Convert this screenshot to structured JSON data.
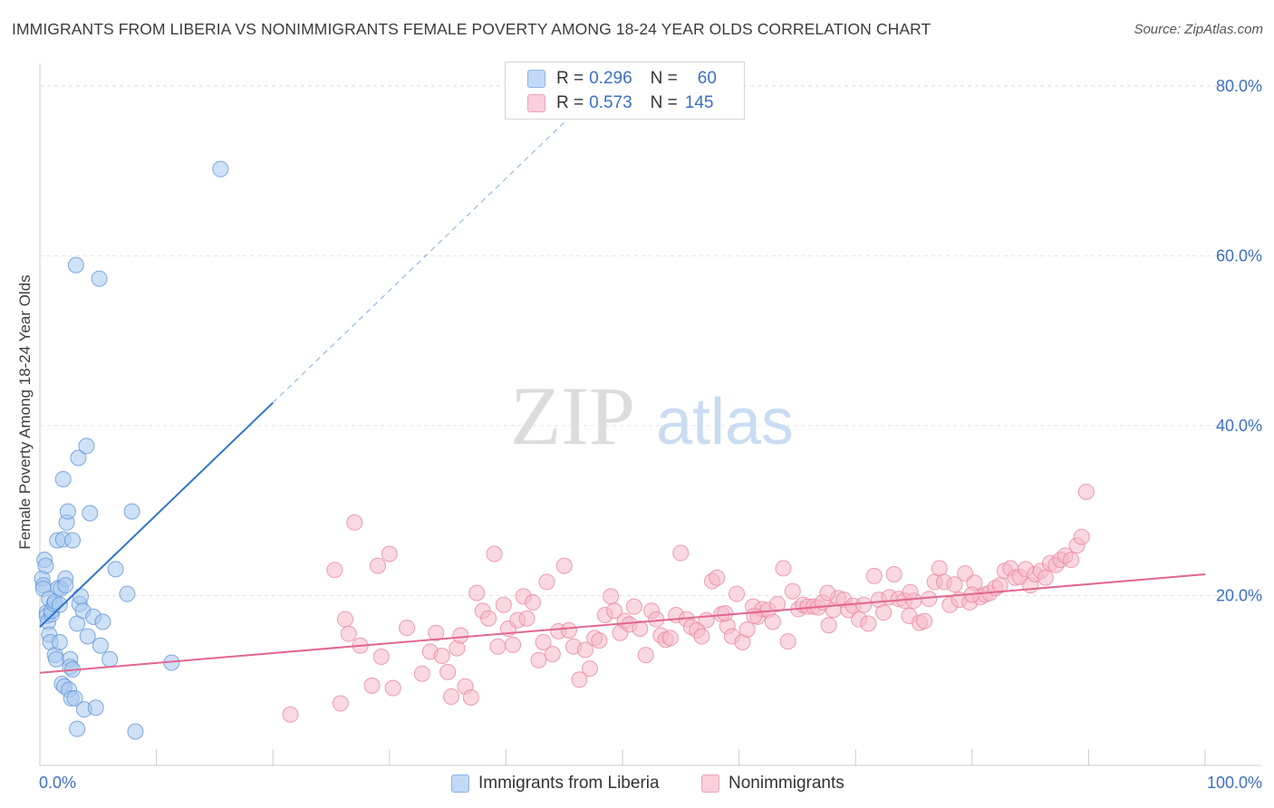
{
  "header": {
    "title": "IMMIGRANTS FROM LIBERIA VS NONIMMIGRANTS FEMALE POVERTY AMONG 18-24 YEAR OLDS CORRELATION CHART",
    "source": "Source: ZipAtlas.com"
  },
  "watermark": {
    "zip": "ZIP",
    "atlas": "atlas"
  },
  "legend": {
    "rows": [
      {
        "r_label": "R =",
        "r_value": "0.296",
        "n_label": "N =",
        "n_value": "60",
        "color": "#a8c8f0"
      },
      {
        "r_label": "R =",
        "r_value": "0.573",
        "n_label": "N =",
        "n_value": "145",
        "color": "#f5b8cb"
      }
    ],
    "bottom": [
      {
        "label": "Immigrants from Liberia",
        "color": "#a8c8f0"
      },
      {
        "label": "Nonimmigrants",
        "color": "#f5b8cb"
      }
    ]
  },
  "colors": {
    "blue_fill": "#a8c8f0",
    "blue_stroke": "#6a9ad8",
    "blue_line": "#2f74d0",
    "pink_fill": "#f5b8cb",
    "pink_stroke": "#e8879f",
    "pink_line": "#e2668f",
    "tick_text": "#3a6fc8",
    "grid": "#e2e2e2"
  },
  "chart_data": {
    "type": "scatter",
    "title": "IMMIGRANTS FROM LIBERIA VS NONIMMIGRANTS FEMALE POVERTY AMONG 18-24 YEAR OLDS CORRELATION CHART",
    "xlabel": "",
    "ylabel": "Female Poverty Among 18-24 Year Olds",
    "xlim": [
      0,
      100
    ],
    "ylim": [
      0,
      82
    ],
    "x_tick_labels": [
      "0.0%",
      "100.0%"
    ],
    "y_ticks": [
      20,
      40,
      60,
      80
    ],
    "y_tick_labels": [
      "20.0%",
      "40.0%",
      "60.0%",
      "80.0%"
    ],
    "grid": true,
    "legend_position": "top-center",
    "series": [
      {
        "name": "Immigrants from Liberia",
        "r": 0.296,
        "n": 60,
        "trend": {
          "x0": 0,
          "y0": 16.3,
          "x1": 20,
          "y1": 42.7,
          "dashed_to_x": 45
        },
        "points": [
          [
            0.2,
            22.0
          ],
          [
            0.3,
            21.2
          ],
          [
            0.3,
            20.8
          ],
          [
            0.4,
            24.2
          ],
          [
            0.5,
            23.5
          ],
          [
            0.6,
            18.0
          ],
          [
            0.6,
            17.6
          ],
          [
            0.7,
            16.9
          ],
          [
            0.8,
            19.6
          ],
          [
            0.8,
            15.4
          ],
          [
            0.9,
            14.5
          ],
          [
            1.0,
            17.8
          ],
          [
            1.0,
            18.2
          ],
          [
            1.2,
            19.0
          ],
          [
            1.3,
            19.3
          ],
          [
            1.3,
            13.0
          ],
          [
            1.4,
            12.5
          ],
          [
            1.5,
            26.5
          ],
          [
            1.6,
            20.9
          ],
          [
            1.7,
            18.9
          ],
          [
            1.7,
            14.5
          ],
          [
            1.8,
            20.8
          ],
          [
            1.9,
            9.6
          ],
          [
            2.0,
            26.6
          ],
          [
            2.0,
            33.7
          ],
          [
            2.1,
            9.3
          ],
          [
            2.2,
            22.0
          ],
          [
            2.2,
            21.2
          ],
          [
            2.3,
            28.6
          ],
          [
            2.4,
            29.9
          ],
          [
            2.5,
            8.9
          ],
          [
            2.6,
            12.5
          ],
          [
            2.6,
            11.6
          ],
          [
            2.7,
            7.9
          ],
          [
            2.8,
            11.3
          ],
          [
            2.8,
            26.5
          ],
          [
            3.0,
            7.9
          ],
          [
            3.1,
            58.9
          ],
          [
            3.2,
            16.7
          ],
          [
            3.2,
            4.3
          ],
          [
            3.3,
            36.2
          ],
          [
            3.4,
            19.0
          ],
          [
            3.5,
            19.9
          ],
          [
            3.7,
            18.2
          ],
          [
            3.8,
            6.6
          ],
          [
            4.0,
            37.6
          ],
          [
            4.1,
            15.2
          ],
          [
            4.3,
            29.7
          ],
          [
            4.6,
            17.5
          ],
          [
            4.8,
            6.8
          ],
          [
            5.1,
            57.3
          ],
          [
            5.2,
            14.1
          ],
          [
            5.4,
            16.9
          ],
          [
            6.0,
            12.5
          ],
          [
            6.5,
            23.1
          ],
          [
            7.5,
            20.2
          ],
          [
            7.9,
            29.9
          ],
          [
            8.2,
            4.0
          ],
          [
            11.3,
            12.1
          ],
          [
            15.5,
            70.2
          ]
        ]
      },
      {
        "name": "Nonimmigrants",
        "r": 0.573,
        "n": 145,
        "trend": {
          "x0": 0,
          "y0": 10.9,
          "x1": 100,
          "y1": 22.5
        },
        "points": [
          [
            21.5,
            6.0
          ],
          [
            25.3,
            23.0
          ],
          [
            25.8,
            7.3
          ],
          [
            26.2,
            17.2
          ],
          [
            26.5,
            15.5
          ],
          [
            27.0,
            28.6
          ],
          [
            27.5,
            14.1
          ],
          [
            28.5,
            9.4
          ],
          [
            29.0,
            23.5
          ],
          [
            29.3,
            12.8
          ],
          [
            30.0,
            24.9
          ],
          [
            30.3,
            9.1
          ],
          [
            31.5,
            16.2
          ],
          [
            32.8,
            10.8
          ],
          [
            33.5,
            13.4
          ],
          [
            34.0,
            15.6
          ],
          [
            34.5,
            12.9
          ],
          [
            35.0,
            11.0
          ],
          [
            35.3,
            8.1
          ],
          [
            35.8,
            13.8
          ],
          [
            36.1,
            15.3
          ],
          [
            36.5,
            9.3
          ],
          [
            37.0,
            8.0
          ],
          [
            37.5,
            20.3
          ],
          [
            38.0,
            18.2
          ],
          [
            38.5,
            17.3
          ],
          [
            39.0,
            24.9
          ],
          [
            39.3,
            14.0
          ],
          [
            39.8,
            18.9
          ],
          [
            40.2,
            16.1
          ],
          [
            40.6,
            14.2
          ],
          [
            41.0,
            17.1
          ],
          [
            41.5,
            19.9
          ],
          [
            41.8,
            17.3
          ],
          [
            42.3,
            19.2
          ],
          [
            42.8,
            12.4
          ],
          [
            43.2,
            14.5
          ],
          [
            43.5,
            21.6
          ],
          [
            44.0,
            13.1
          ],
          [
            44.5,
            15.8
          ],
          [
            45.0,
            23.5
          ],
          [
            45.4,
            15.9
          ],
          [
            45.8,
            14.0
          ],
          [
            46.3,
            10.1
          ],
          [
            46.8,
            13.6
          ],
          [
            47.2,
            11.4
          ],
          [
            47.6,
            15.0
          ],
          [
            48.0,
            14.7
          ],
          [
            48.5,
            17.7
          ],
          [
            49.0,
            19.9
          ],
          [
            49.3,
            18.2
          ],
          [
            49.8,
            15.6
          ],
          [
            50.2,
            17.0
          ],
          [
            50.6,
            16.6
          ],
          [
            51.0,
            18.7
          ],
          [
            51.5,
            16.1
          ],
          [
            52.0,
            13.0
          ],
          [
            52.5,
            18.2
          ],
          [
            52.9,
            17.2
          ],
          [
            53.3,
            15.3
          ],
          [
            53.7,
            14.8
          ],
          [
            54.1,
            15.0
          ],
          [
            54.6,
            17.7
          ],
          [
            55.0,
            25.0
          ],
          [
            55.5,
            17.2
          ],
          [
            55.9,
            16.3
          ],
          [
            56.4,
            15.9
          ],
          [
            56.8,
            15.2
          ],
          [
            57.2,
            17.1
          ],
          [
            57.7,
            21.7
          ],
          [
            58.1,
            22.1
          ],
          [
            58.5,
            17.8
          ],
          [
            59.0,
            16.4
          ],
          [
            59.4,
            15.2
          ],
          [
            59.8,
            20.2
          ],
          [
            60.3,
            14.5
          ],
          [
            60.7,
            16.0
          ],
          [
            61.2,
            18.7
          ],
          [
            61.6,
            17.5
          ],
          [
            62.0,
            18.4
          ],
          [
            62.5,
            18.3
          ],
          [
            62.9,
            16.9
          ],
          [
            63.3,
            19.0
          ],
          [
            63.8,
            23.2
          ],
          [
            64.2,
            14.6
          ],
          [
            64.6,
            20.5
          ],
          [
            65.1,
            18.4
          ],
          [
            65.5,
            18.9
          ],
          [
            65.9,
            18.7
          ],
          [
            66.4,
            18.7
          ],
          [
            66.8,
            18.6
          ],
          [
            67.2,
            19.2
          ],
          [
            67.7,
            16.5
          ],
          [
            68.1,
            18.3
          ],
          [
            68.5,
            19.7
          ],
          [
            69.0,
            19.5
          ],
          [
            69.4,
            18.3
          ],
          [
            69.8,
            18.8
          ],
          [
            70.3,
            17.2
          ],
          [
            70.7,
            18.9
          ],
          [
            71.1,
            16.7
          ],
          [
            71.6,
            22.3
          ],
          [
            72.0,
            19.5
          ],
          [
            72.4,
            18.0
          ],
          [
            72.9,
            19.8
          ],
          [
            73.3,
            22.5
          ],
          [
            73.7,
            19.6
          ],
          [
            74.2,
            19.4
          ],
          [
            74.6,
            17.6
          ],
          [
            75.0,
            19.4
          ],
          [
            75.5,
            16.8
          ],
          [
            75.9,
            17.0
          ],
          [
            76.3,
            19.6
          ],
          [
            76.8,
            21.6
          ],
          [
            77.2,
            23.2
          ],
          [
            77.6,
            21.6
          ],
          [
            78.1,
            18.9
          ],
          [
            78.5,
            21.3
          ],
          [
            78.9,
            19.5
          ],
          [
            79.4,
            22.6
          ],
          [
            79.8,
            19.2
          ],
          [
            80.2,
            21.5
          ],
          [
            80.7,
            19.8
          ],
          [
            81.1,
            20.1
          ],
          [
            81.5,
            20.3
          ],
          [
            82.0,
            20.9
          ],
          [
            82.4,
            21.2
          ],
          [
            82.8,
            22.9
          ],
          [
            83.3,
            23.2
          ],
          [
            83.7,
            22.1
          ],
          [
            84.1,
            22.2
          ],
          [
            84.6,
            23.1
          ],
          [
            85.0,
            21.2
          ],
          [
            85.4,
            22.5
          ],
          [
            85.9,
            22.9
          ],
          [
            86.3,
            22.1
          ],
          [
            86.7,
            23.8
          ],
          [
            87.2,
            23.6
          ],
          [
            87.6,
            24.2
          ],
          [
            88.0,
            24.7
          ],
          [
            88.5,
            24.2
          ],
          [
            89.0,
            25.9
          ],
          [
            89.4,
            26.9
          ],
          [
            89.8,
            32.2
          ],
          [
            58.8,
            17.9
          ],
          [
            61.3,
            17.6
          ],
          [
            67.6,
            20.3
          ],
          [
            74.7,
            20.4
          ],
          [
            80.0,
            20.1
          ]
        ]
      }
    ]
  }
}
